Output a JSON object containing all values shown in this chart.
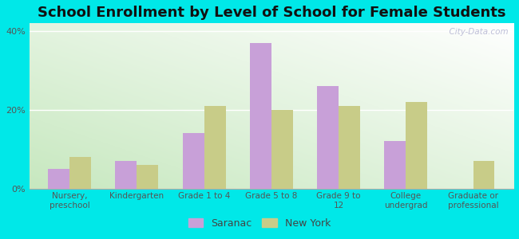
{
  "title": "School Enrollment by Level of School for Female Students",
  "categories": [
    "Nursery,\npreschool",
    "Kindergarten",
    "Grade 1 to 4",
    "Grade 5 to 8",
    "Grade 9 to\n12",
    "College\nundergrad",
    "Graduate or\nprofessional"
  ],
  "saranac": [
    5,
    7,
    14,
    37,
    26,
    12,
    0
  ],
  "new_york": [
    8,
    6,
    21,
    20,
    21,
    22,
    7
  ],
  "saranac_color": "#c8a0d8",
  "new_york_color": "#c8cc88",
  "background_outer": "#00e8e8",
  "ylim": [
    0,
    42
  ],
  "yticks": [
    0,
    20,
    40
  ],
  "ytick_labels": [
    "0%",
    "20%",
    "40%"
  ],
  "bar_width": 0.32,
  "watermark": "  City-Data.com",
  "legend_saranac": "Saranac",
  "legend_ny": "New York",
  "title_fontsize": 13,
  "tick_fontsize": 7.5
}
